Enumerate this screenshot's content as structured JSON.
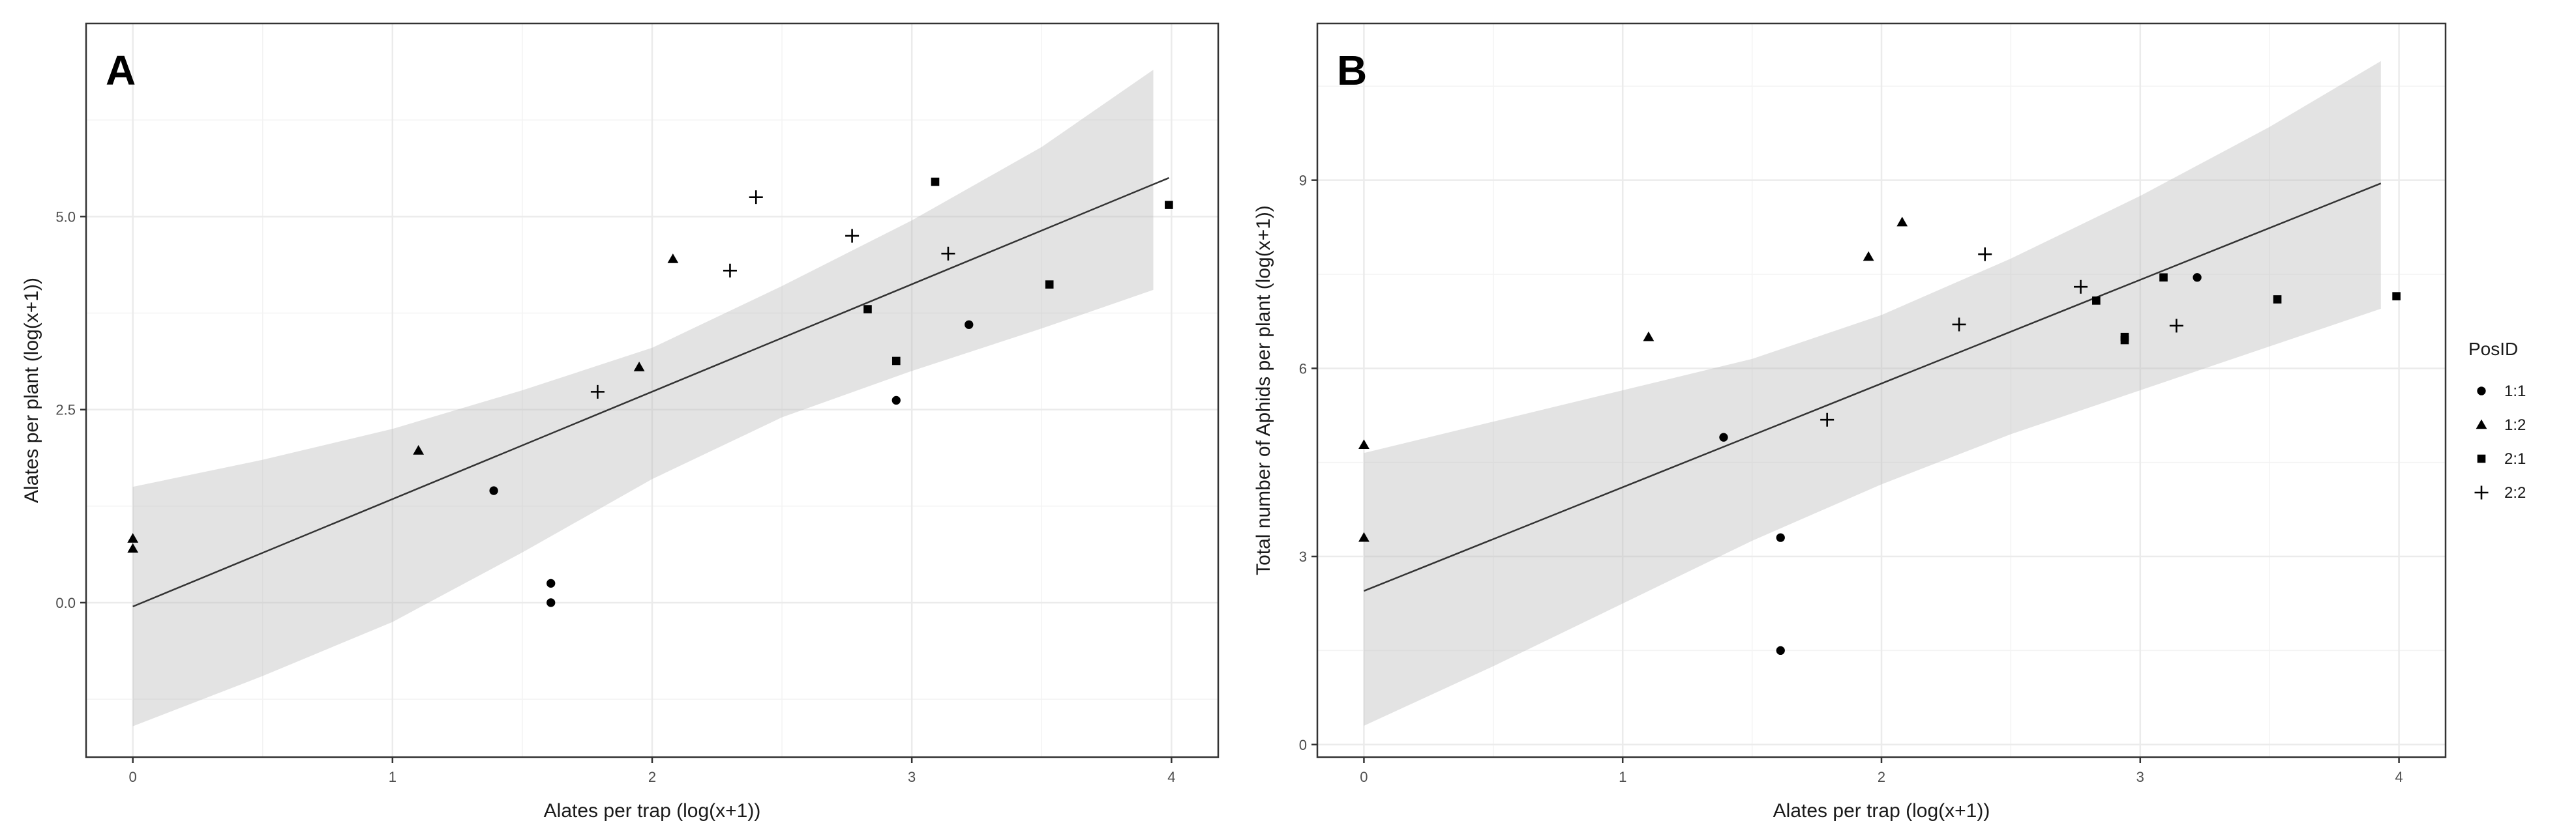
{
  "chart_data": [
    {
      "type": "scatter",
      "panel_label": "A",
      "title": "",
      "xlabel": "Alates per trap (log(x+1))",
      "ylabel": "Alates per plant (log(x+1))",
      "xlim": [
        -0.18,
        4.18
      ],
      "ylim": [
        -2.0,
        7.5
      ],
      "x_ticks": [
        0,
        1,
        2,
        3,
        4
      ],
      "x_tick_labels": [
        "0",
        "1",
        "2",
        "3",
        "4"
      ],
      "y_ticks": [
        0.0,
        2.5,
        5.0
      ],
      "y_tick_labels": [
        "0.0",
        "2.5",
        "5.0"
      ],
      "grid": true,
      "fit_line": {
        "x0": 0,
        "y0": -0.05,
        "x1": 3.99,
        "y1": 5.5
      },
      "confidence_band": {
        "x": [
          0,
          0.5,
          1.0,
          1.5,
          2.0,
          2.5,
          3.0,
          3.5,
          3.93
        ],
        "lower": [
          -1.6,
          -0.95,
          -0.25,
          0.65,
          1.6,
          2.4,
          3.0,
          3.55,
          4.05
        ],
        "upper": [
          1.5,
          1.85,
          2.25,
          2.75,
          3.3,
          4.1,
          4.95,
          5.9,
          6.9
        ]
      },
      "series": [
        {
          "name": "1:1",
          "marker": "circle",
          "points": [
            [
              1.39,
              1.45
            ],
            [
              1.61,
              0.25
            ],
            [
              1.61,
              0.0
            ],
            [
              2.94,
              2.62
            ],
            [
              3.22,
              3.6
            ]
          ]
        },
        {
          "name": "1:2",
          "marker": "triangle",
          "points": [
            [
              0,
              0.83
            ],
            [
              0,
              0.7
            ],
            [
              1.1,
              1.97
            ],
            [
              1.95,
              3.05
            ],
            [
              2.08,
              4.45
            ]
          ]
        },
        {
          "name": "2:1",
          "marker": "square",
          "points": [
            [
              2.83,
              3.8
            ],
            [
              2.94,
              3.13
            ],
            [
              3.09,
              5.45
            ],
            [
              3.53,
              4.12
            ],
            [
              3.99,
              5.15
            ]
          ]
        },
        {
          "name": "2:2",
          "marker": "plus",
          "points": [
            [
              1.79,
              2.73
            ],
            [
              2.3,
              4.3
            ],
            [
              2.4,
              5.25
            ],
            [
              2.77,
              4.75
            ],
            [
              3.14,
              4.52
            ]
          ]
        }
      ]
    },
    {
      "type": "scatter",
      "panel_label": "B",
      "title": "",
      "xlabel": "Alates per trap (log(x+1))",
      "ylabel": "Total number of Aphids per plant (log(x+1))",
      "xlim": [
        -0.18,
        4.18
      ],
      "ylim": [
        -0.2,
        11.5
      ],
      "x_ticks": [
        0,
        1,
        2,
        3,
        4
      ],
      "x_tick_labels": [
        "0",
        "1",
        "2",
        "3",
        "4"
      ],
      "y_ticks": [
        0,
        3,
        6,
        9
      ],
      "y_tick_labels": [
        "0",
        "3",
        "6",
        "9"
      ],
      "grid": true,
      "fit_line": {
        "x0": 0,
        "y0": 2.45,
        "x1": 3.93,
        "y1": 8.95
      },
      "confidence_band": {
        "x": [
          0,
          0.5,
          1.0,
          1.5,
          2.0,
          2.5,
          3.0,
          3.5,
          3.93
        ],
        "lower": [
          0.3,
          1.25,
          2.25,
          3.25,
          4.15,
          4.95,
          5.65,
          6.35,
          6.95
        ],
        "upper": [
          4.65,
          5.15,
          5.65,
          6.15,
          6.85,
          7.75,
          8.75,
          9.85,
          10.9
        ]
      },
      "series": [
        {
          "name": "1:1",
          "marker": "circle",
          "points": [
            [
              1.39,
              4.9
            ],
            [
              1.61,
              3.3
            ],
            [
              1.61,
              1.5
            ],
            [
              3.22,
              7.45
            ]
          ]
        },
        {
          "name": "1:2",
          "marker": "triangle",
          "points": [
            [
              0,
              4.78
            ],
            [
              0,
              3.3
            ],
            [
              1.1,
              6.5
            ],
            [
              1.95,
              7.78
            ],
            [
              2.08,
              8.33
            ]
          ]
        },
        {
          "name": "2:1",
          "marker": "square",
          "points": [
            [
              2.83,
              7.08
            ],
            [
              2.94,
              6.45
            ],
            [
              2.94,
              6.5
            ],
            [
              3.09,
              7.45
            ],
            [
              3.53,
              7.1
            ],
            [
              3.99,
              7.15
            ]
          ]
        },
        {
          "name": "2:2",
          "marker": "plus",
          "points": [
            [
              1.79,
              5.18
            ],
            [
              2.3,
              6.7
            ],
            [
              2.4,
              7.82
            ],
            [
              2.77,
              7.3
            ],
            [
              3.14,
              6.68
            ]
          ]
        }
      ]
    }
  ],
  "legend": {
    "title": "PosID",
    "items": [
      {
        "label": "1:1",
        "marker": "circle"
      },
      {
        "label": "1:2",
        "marker": "triangle"
      },
      {
        "label": "2:1",
        "marker": "square"
      },
      {
        "label": "2:2",
        "marker": "plus"
      }
    ]
  },
  "colors": {
    "point": "#000000",
    "line": "#333333",
    "band": "#bdbdbd",
    "grid": "#ebebeb",
    "panel_border": "#333333"
  }
}
